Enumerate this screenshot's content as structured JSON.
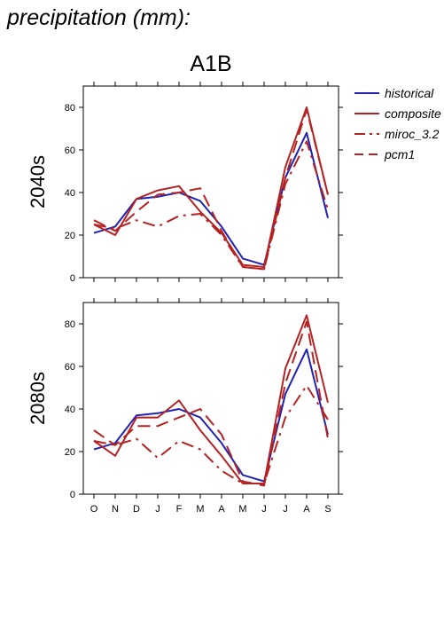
{
  "page": {
    "title": "precipitation (mm):"
  },
  "chart_data": {
    "type": "line",
    "title": "A1B",
    "categories": [
      "O",
      "N",
      "D",
      "J",
      "F",
      "M",
      "A",
      "M",
      "J",
      "J",
      "A",
      "S"
    ],
    "ylim": [
      0,
      90
    ],
    "yticks": [
      0,
      20,
      40,
      60,
      80
    ],
    "grid": false,
    "legend_position": "top-right",
    "legend": [
      {
        "name": "historical",
        "color": "#1f22b5",
        "style": "solid"
      },
      {
        "name": "composite",
        "color": "#b52222",
        "style": "solid"
      },
      {
        "name": "miroc_3.2",
        "color": "#b52222",
        "style": "dashdot"
      },
      {
        "name": "pcm1",
        "color": "#b52222",
        "style": "dashed"
      }
    ],
    "panels": [
      {
        "label": "2040s",
        "series": [
          {
            "name": "historical",
            "values": [
              21,
              24,
              37,
              38,
              40,
              36,
              24,
              9,
              6,
              47,
              68,
              28
            ]
          },
          {
            "name": "composite",
            "values": [
              25,
              20,
              37,
              41,
              43,
              31,
              21,
              6,
              5,
              52,
              80,
              39
            ]
          },
          {
            "name": "miroc_3.2",
            "values": [
              25,
              23,
              27,
              24,
              29,
              30,
              20,
              5,
              4,
              44,
              64,
              32
            ]
          },
          {
            "name": "pcm1",
            "values": [
              27,
              22,
              31,
              39,
              40,
              42,
              22,
              5,
              4,
              47,
              79,
              39
            ]
          }
        ]
      },
      {
        "label": "2080s",
        "series": [
          {
            "name": "historical",
            "values": [
              21,
              24,
              37,
              38,
              40,
              36,
              24,
              9,
              6,
              47,
              68,
              28
            ]
          },
          {
            "name": "composite",
            "values": [
              25,
              18,
              36,
              36,
              44,
              30,
              18,
              5,
              5,
              59,
              84,
              43
            ]
          },
          {
            "name": "miroc_3.2",
            "values": [
              25,
              23,
              26,
              17,
              25,
              21,
              11,
              5,
              5,
              36,
              51,
              35
            ]
          },
          {
            "name": "pcm1",
            "values": [
              30,
              23,
              32,
              32,
              36,
              40,
              28,
              6,
              4,
              52,
              81,
              26
            ]
          }
        ]
      }
    ]
  }
}
